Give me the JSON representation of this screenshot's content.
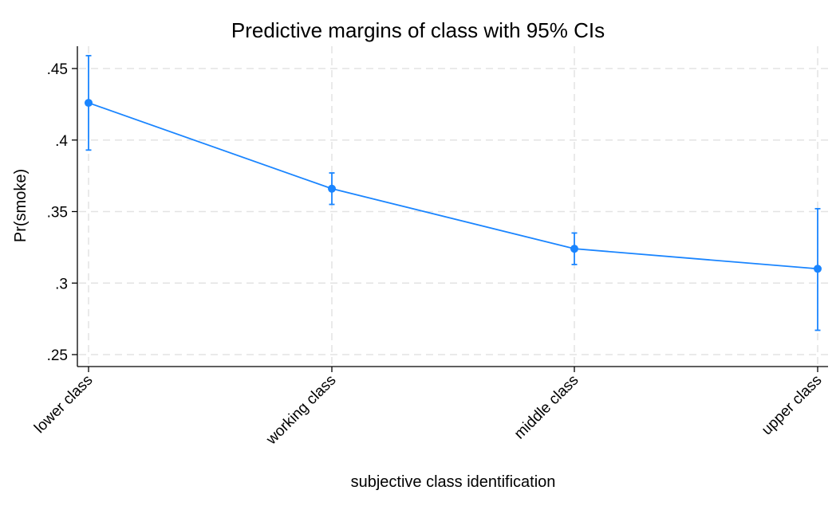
{
  "chart_data": {
    "type": "line",
    "title": "Predictive margins of class with 95% CIs",
    "xlabel": "subjective class identification",
    "ylabel": "Pr(smoke)",
    "categories": [
      "lower class",
      "working class",
      "middle class",
      "upper class"
    ],
    "series": [
      {
        "values": [
          0.426,
          0.366,
          0.324,
          0.31
        ],
        "ci_lower": [
          0.393,
          0.355,
          0.313,
          0.267
        ],
        "ci_upper": [
          0.459,
          0.377,
          0.335,
          0.352
        ]
      }
    ],
    "ylim": [
      0.25,
      0.46
    ],
    "yticks": [
      0.25,
      0.3,
      0.35,
      0.4,
      0.45
    ],
    "ytick_labels": [
      ".25",
      ".3",
      ".35",
      ".4",
      ".45"
    ],
    "grid": true,
    "legend": "none",
    "colors": {
      "series": "#1a85ff",
      "grid": "#e3e3e3",
      "axis": "#000000"
    }
  }
}
